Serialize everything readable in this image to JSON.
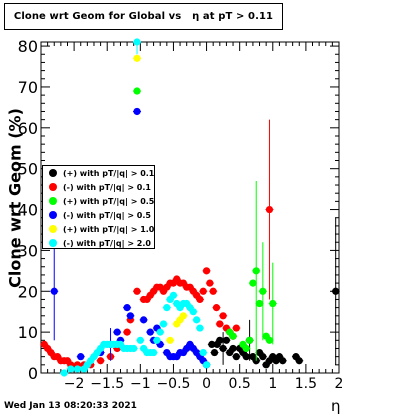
{
  "title": "Clone wrt Geom for Global vs   η at pT > 0.11",
  "timestamp": "Wed Jan 13 08:20:33 2021",
  "chart_data": {
    "type": "scatter",
    "xlabel": "η",
    "ylabel": "Clone wrt Geom (%)",
    "xlim": [
      -2.5,
      2.0
    ],
    "ylim": [
      0,
      81
    ],
    "xticks": [
      -2,
      -1.5,
      -1,
      -0.5,
      0,
      0.5,
      1,
      1.5,
      2
    ],
    "xtick_labels": [
      "−2",
      "−1.5",
      "−1",
      "−0.5",
      "0",
      "0.5",
      "1",
      "1.5",
      "2"
    ],
    "yticks": [
      0,
      10,
      20,
      30,
      40,
      50,
      60,
      70,
      80
    ],
    "ytick_labels": [
      "0",
      "10",
      "20",
      "30",
      "40",
      "50",
      "60",
      "70",
      "80"
    ],
    "grid": false,
    "legend_position": "middle-left",
    "series": [
      {
        "name": "(+) with pT/|q| > 0.1",
        "color": "#000000",
        "points": [
          [
            0.08,
            7
          ],
          [
            0.12,
            5
          ],
          [
            0.16,
            7
          ],
          [
            0.2,
            8
          ],
          [
            0.25,
            6
          ],
          [
            0.3,
            8
          ],
          [
            0.35,
            5
          ],
          [
            0.4,
            6
          ],
          [
            0.45,
            4
          ],
          [
            0.5,
            6
          ],
          [
            0.55,
            5
          ],
          [
            0.6,
            4
          ],
          [
            0.65,
            8
          ],
          [
            0.7,
            4
          ],
          [
            0.75,
            3
          ],
          [
            0.8,
            5
          ],
          [
            0.85,
            4
          ],
          [
            0.9,
            2
          ],
          [
            0.95,
            3
          ],
          [
            1.0,
            4
          ],
          [
            1.05,
            3
          ],
          [
            1.1,
            4
          ],
          [
            1.15,
            3
          ],
          [
            1.35,
            4
          ],
          [
            1.4,
            3
          ],
          [
            1.95,
            20
          ]
        ],
        "err": [
          [
            0.25,
            4
          ],
          [
            0.65,
            5
          ],
          [
            1.95,
            18
          ]
        ]
      },
      {
        "name": "(-) with pT/|q| > 0.1",
        "color": "#ff0000",
        "points": [
          [
            -2.45,
            7
          ],
          [
            -2.4,
            6
          ],
          [
            -2.35,
            5
          ],
          [
            -2.3,
            4
          ],
          [
            -2.25,
            4
          ],
          [
            -2.2,
            3
          ],
          [
            -2.15,
            3
          ],
          [
            -2.1,
            3
          ],
          [
            -2.05,
            2
          ],
          [
            -1.95,
            2
          ],
          [
            -1.85,
            2
          ],
          [
            -1.75,
            2
          ],
          [
            -1.6,
            3
          ],
          [
            -1.45,
            4
          ],
          [
            -1.35,
            6
          ],
          [
            -1.2,
            10
          ],
          [
            -1.15,
            13
          ],
          [
            -1.05,
            20
          ],
          [
            -0.95,
            18
          ],
          [
            -0.9,
            18
          ],
          [
            -0.85,
            19
          ],
          [
            -0.8,
            20
          ],
          [
            -0.75,
            21
          ],
          [
            -0.7,
            21
          ],
          [
            -0.65,
            20
          ],
          [
            -0.6,
            21
          ],
          [
            -0.55,
            22
          ],
          [
            -0.5,
            22
          ],
          [
            -0.45,
            23
          ],
          [
            -0.4,
            22
          ],
          [
            -0.35,
            22
          ],
          [
            -0.3,
            21
          ],
          [
            -0.25,
            21
          ],
          [
            -0.2,
            20
          ],
          [
            -0.15,
            19
          ],
          [
            -0.1,
            18
          ],
          [
            -0.05,
            20
          ],
          [
            0.0,
            25
          ],
          [
            0.05,
            22
          ],
          [
            0.1,
            20
          ],
          [
            0.15,
            16
          ],
          [
            0.2,
            12
          ],
          [
            0.25,
            14
          ],
          [
            0.3,
            11
          ],
          [
            0.35,
            10
          ],
          [
            0.4,
            9
          ],
          [
            0.45,
            11
          ],
          [
            0.95,
            40
          ]
        ],
        "err": [
          [
            0.95,
            22
          ]
        ]
      },
      {
        "name": "(+) with pT/|q| > 0.5",
        "color": "#00ff00",
        "points": [
          [
            -1.05,
            69
          ],
          [
            0.35,
            10
          ],
          [
            0.4,
            9
          ],
          [
            0.55,
            7
          ],
          [
            0.6,
            6
          ],
          [
            0.65,
            8
          ],
          [
            0.7,
            22
          ],
          [
            0.75,
            25
          ],
          [
            0.8,
            17
          ],
          [
            0.85,
            20
          ],
          [
            0.9,
            9
          ],
          [
            0.95,
            8
          ],
          [
            1.0,
            17
          ]
        ],
        "err": [
          [
            0.75,
            22
          ],
          [
            0.85,
            12
          ],
          [
            1.0,
            10
          ]
        ]
      },
      {
        "name": "(-) with pT/|q| > 0.5",
        "color": "#0000ff",
        "points": [
          [
            -2.3,
            20
          ],
          [
            -1.9,
            4
          ],
          [
            -1.6,
            5
          ],
          [
            -1.45,
            7
          ],
          [
            -1.35,
            10
          ],
          [
            -1.3,
            8
          ],
          [
            -1.2,
            16
          ],
          [
            -1.15,
            14
          ],
          [
            -1.05,
            64
          ],
          [
            -0.95,
            13
          ],
          [
            -0.85,
            10
          ],
          [
            -0.8,
            8
          ],
          [
            -0.75,
            11
          ],
          [
            -0.7,
            7
          ],
          [
            -0.6,
            5
          ],
          [
            -0.55,
            4
          ],
          [
            -0.5,
            4
          ],
          [
            -0.45,
            4
          ],
          [
            -0.4,
            5
          ],
          [
            -0.35,
            5
          ],
          [
            -0.3,
            6
          ],
          [
            -0.25,
            7
          ],
          [
            -0.2,
            6
          ],
          [
            -0.15,
            5
          ],
          [
            -0.1,
            4
          ],
          [
            -0.05,
            3
          ],
          [
            0.0,
            2
          ]
        ],
        "err": [
          [
            -2.3,
            12
          ],
          [
            -1.45,
            4
          ]
        ]
      },
      {
        "name": "(+) with pT/|q| > 1.0",
        "color": "#ffff00",
        "points": [
          [
            -1.05,
            77
          ],
          [
            -0.55,
            8
          ],
          [
            -0.45,
            12
          ],
          [
            -0.4,
            13
          ],
          [
            -0.35,
            14
          ]
        ],
        "err": []
      },
      {
        "name": "(-) with pT/|q| > 2.0",
        "color": "#00ffff",
        "points": [
          [
            -2.15,
            0
          ],
          [
            -2.05,
            1
          ],
          [
            -1.95,
            1
          ],
          [
            -1.85,
            1
          ],
          [
            -1.8,
            2
          ],
          [
            -1.75,
            3
          ],
          [
            -1.7,
            4
          ],
          [
            -1.65,
            5
          ],
          [
            -1.6,
            6
          ],
          [
            -1.55,
            7
          ],
          [
            -1.5,
            7
          ],
          [
            -1.45,
            7
          ],
          [
            -1.4,
            7
          ],
          [
            -1.35,
            7
          ],
          [
            -1.3,
            7
          ],
          [
            -1.25,
            6
          ],
          [
            -1.2,
            6
          ],
          [
            -1.15,
            6
          ],
          [
            -1.1,
            6
          ],
          [
            -1.05,
            81
          ],
          [
            -1.0,
            8
          ],
          [
            -0.95,
            6
          ],
          [
            -0.9,
            5
          ],
          [
            -0.85,
            5
          ],
          [
            -0.8,
            5
          ],
          [
            -0.75,
            8
          ],
          [
            -0.7,
            10
          ],
          [
            -0.65,
            12
          ],
          [
            -0.6,
            16
          ],
          [
            -0.55,
            18
          ],
          [
            -0.5,
            19
          ],
          [
            -0.45,
            17
          ],
          [
            -0.4,
            16
          ],
          [
            -0.35,
            17
          ],
          [
            -0.3,
            17
          ],
          [
            -0.25,
            16
          ],
          [
            -0.2,
            15
          ],
          [
            -0.15,
            13
          ],
          [
            -0.1,
            11
          ],
          [
            -0.05,
            5
          ],
          [
            0.0,
            2
          ]
        ],
        "err": [
          [
            -1.05,
            3
          ]
        ]
      }
    ]
  }
}
